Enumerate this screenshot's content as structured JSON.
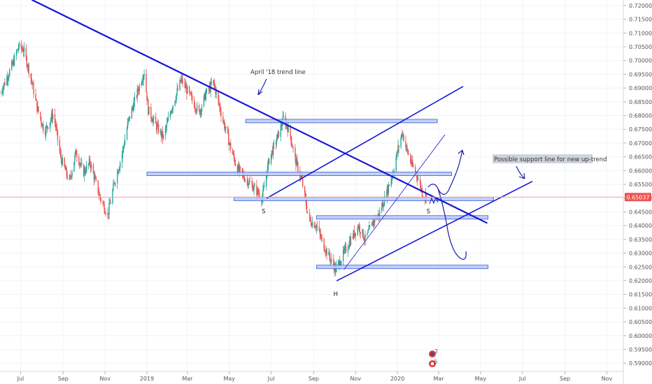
{
  "chart_data": {
    "type": "candlestick",
    "y_axis": {
      "side": "right",
      "range": [
        0.587,
        0.722
      ],
      "ticks": [
        "0.72000",
        "0.71500",
        "0.71000",
        "0.70500",
        "0.70000",
        "0.69500",
        "0.69000",
        "0.68500",
        "0.68000",
        "0.67500",
        "0.67000",
        "0.66500",
        "0.66000",
        "0.65500",
        "0.65000",
        "0.64500",
        "0.64000",
        "0.63500",
        "0.63000",
        "0.62500",
        "0.62000",
        "0.61500",
        "0.61000",
        "0.60500",
        "0.60000",
        "0.59500",
        "0.59000"
      ]
    },
    "x_axis": {
      "range": [
        "2018-06-01",
        "2020-11-25"
      ],
      "ticks": [
        {
          "label": "Jul",
          "date": "2018-07-01"
        },
        {
          "label": "Sep",
          "date": "2018-09-01"
        },
        {
          "label": "Nov",
          "date": "2018-11-01"
        },
        {
          "label": "2019",
          "date": "2019-01-01"
        },
        {
          "label": "Mar",
          "date": "2019-03-01"
        },
        {
          "label": "May",
          "date": "2019-05-01"
        },
        {
          "label": "Jul",
          "date": "2019-07-01"
        },
        {
          "label": "Sep",
          "date": "2019-09-01"
        },
        {
          "label": "Nov",
          "date": "2019-11-01"
        },
        {
          "label": "2020",
          "date": "2020-01-01"
        },
        {
          "label": "Mar",
          "date": "2020-03-01"
        },
        {
          "label": "May",
          "date": "2020-05-01"
        },
        {
          "label": "Jul",
          "date": "2020-07-01"
        },
        {
          "label": "Sep",
          "date": "2020-09-01"
        },
        {
          "label": "Nov",
          "date": "2020-11-01"
        }
      ]
    },
    "price_path": [
      [
        "2018-06-01",
        0.688
      ],
      [
        "2018-06-20",
        0.699
      ],
      [
        "2018-06-28",
        0.705
      ],
      [
        "2018-07-05",
        0.704
      ],
      [
        "2018-07-15",
        0.695
      ],
      [
        "2018-07-25",
        0.683
      ],
      [
        "2018-08-05",
        0.674
      ],
      [
        "2018-08-18",
        0.681
      ],
      [
        "2018-08-28",
        0.665
      ],
      [
        "2018-09-10",
        0.656
      ],
      [
        "2018-09-20",
        0.667
      ],
      [
        "2018-09-30",
        0.659
      ],
      [
        "2018-10-10",
        0.663
      ],
      [
        "2018-10-25",
        0.65
      ],
      [
        "2018-11-05",
        0.644
      ],
      [
        "2018-11-15",
        0.656
      ],
      [
        "2018-11-25",
        0.665
      ],
      [
        "2018-12-05",
        0.678
      ],
      [
        "2018-12-20",
        0.69
      ],
      [
        "2018-12-28",
        0.696
      ],
      [
        "2019-01-03",
        0.682
      ],
      [
        "2019-01-15",
        0.676
      ],
      [
        "2019-01-25",
        0.672
      ],
      [
        "2019-02-05",
        0.682
      ],
      [
        "2019-02-20",
        0.693
      ],
      [
        "2019-03-05",
        0.687
      ],
      [
        "2019-03-18",
        0.681
      ],
      [
        "2019-03-28",
        0.688
      ],
      [
        "2019-04-08",
        0.692
      ],
      [
        "2019-04-20",
        0.68
      ],
      [
        "2019-05-01",
        0.67
      ],
      [
        "2019-05-12",
        0.661
      ],
      [
        "2019-05-25",
        0.657
      ],
      [
        "2019-06-05",
        0.654
      ],
      [
        "2019-06-18",
        0.65
      ],
      [
        "2019-06-28",
        0.664
      ],
      [
        "2019-07-10",
        0.672
      ],
      [
        "2019-07-19",
        0.679
      ],
      [
        "2019-07-28",
        0.674
      ],
      [
        "2019-08-05",
        0.664
      ],
      [
        "2019-08-15",
        0.656
      ],
      [
        "2019-08-25",
        0.642
      ],
      [
        "2019-09-05",
        0.64
      ],
      [
        "2019-09-15",
        0.633
      ],
      [
        "2019-09-25",
        0.628
      ],
      [
        "2019-10-03",
        0.624
      ],
      [
        "2019-10-15",
        0.63
      ],
      [
        "2019-10-25",
        0.635
      ],
      [
        "2019-11-05",
        0.64
      ],
      [
        "2019-11-15",
        0.635
      ],
      [
        "2019-11-28",
        0.642
      ],
      [
        "2019-12-05",
        0.644
      ],
      [
        "2019-12-15",
        0.651
      ],
      [
        "2019-12-26",
        0.66
      ],
      [
        "2020-01-02",
        0.668
      ],
      [
        "2020-01-08",
        0.674
      ],
      [
        "2020-01-14",
        0.668
      ],
      [
        "2020-01-22",
        0.662
      ],
      [
        "2020-01-30",
        0.658
      ],
      [
        "2020-02-04",
        0.654
      ],
      [
        "2020-02-08",
        0.65
      ],
      [
        "2020-02-12",
        0.651
      ]
    ],
    "current_price": "0.65037",
    "horizontal_zones": [
      {
        "from": "2019-05-25",
        "to": "2020-02-28",
        "y": 0.678
      },
      {
        "from": "2019-01-01",
        "to": "2020-03-20",
        "y": 0.6588
      },
      {
        "from": "2019-05-08",
        "to": "2020-05-20",
        "y": 0.6497
      },
      {
        "from": "2019-09-05",
        "to": "2020-05-12",
        "y": 0.643
      },
      {
        "from": "2019-09-05",
        "to": "2020-05-12",
        "y": 0.625
      }
    ],
    "trend_lines": [
      {
        "name": "april-18-trend-line",
        "from": [
          "2018-07-18",
          0.722
        ],
        "to": [
          "2020-05-10",
          0.641
        ],
        "weight": "bold"
      },
      {
        "name": "upper-channel-line",
        "from": [
          "2019-06-25",
          0.65
        ],
        "to": [
          "2020-04-05",
          0.6905
        ],
        "weight": "medium"
      },
      {
        "name": "thin-support-line",
        "from": [
          "2019-10-15",
          0.624
        ],
        "to": [
          "2020-03-10",
          0.673
        ],
        "weight": "thin"
      },
      {
        "name": "new-up-trend-line",
        "from": [
          "2019-10-05",
          0.62
        ],
        "to": [
          "2020-07-15",
          0.656
        ],
        "weight": "medium"
      }
    ],
    "annotations": {
      "trend_label": "April '18 trend line",
      "support_label": "Possible support line for new up-trend",
      "pattern_labels": [
        {
          "text": "S",
          "date": "2019-06-20",
          "y": 0.6475
        },
        {
          "text": "H",
          "date": "2019-10-03",
          "y": 0.6175
        },
        {
          "text": "S",
          "date": "2020-02-15",
          "y": 0.6475
        }
      ],
      "icon_badges": [
        "2",
        "6"
      ]
    },
    "colors": {
      "up": "#26a69a",
      "down": "#ef5350",
      "trend_line": "#1515d6",
      "zone_fill": "#b9c9f6",
      "zone_stroke": "#3b5bdb",
      "price_line": "#f0a8a8",
      "price_box": "#ef5350",
      "background": "#ffffff",
      "grid": "#f0f3fa"
    }
  }
}
